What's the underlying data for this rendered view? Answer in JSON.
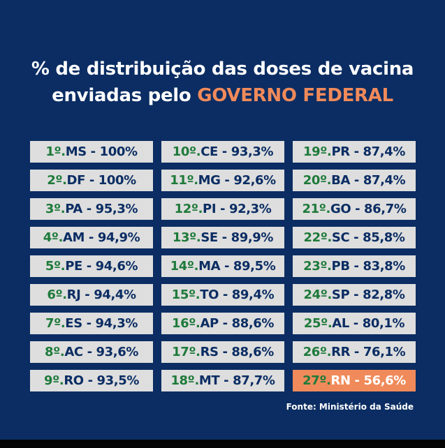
{
  "title": {
    "line1": "% de distribuição das doses de vacina",
    "line2_prefix": "enviadas pelo ",
    "line2_highlight": "GOVERNO FEDERAL"
  },
  "source": "Fonte: Ministério da Saúde",
  "colors": {
    "background": "#0b2d63",
    "cell": "#dedede",
    "rank": "#1e7a3a",
    "highlight": "#f08a5a"
  },
  "columns": [
    [
      {
        "rank": "1º.",
        "rest": "MS - 100%"
      },
      {
        "rank": "2º.",
        "rest": "DF - 100%"
      },
      {
        "rank": "3º.",
        "rest": "PA - 95,3%"
      },
      {
        "rank": "4º.",
        "rest": "AM - 94,9%"
      },
      {
        "rank": "5º.",
        "rest": "PE - 94,6%"
      },
      {
        "rank": "6º.",
        "rest": "RJ - 94,4%"
      },
      {
        "rank": "7º.",
        "rest": "ES - 94,3%"
      },
      {
        "rank": "8º.",
        "rest": "AC - 93,6%"
      },
      {
        "rank": "9º.",
        "rest": "RO - 93,5%"
      }
    ],
    [
      {
        "rank": "10º.",
        "rest": "CE - 93,3%"
      },
      {
        "rank": "11º.",
        "rest": "MG - 92,6%"
      },
      {
        "rank": "12º.",
        "rest": "PI - 92,3%"
      },
      {
        "rank": "13º.",
        "rest": "SE - 89,9%"
      },
      {
        "rank": "14º.",
        "rest": "MA - 89,5%"
      },
      {
        "rank": "15º.",
        "rest": "TO - 89,4%"
      },
      {
        "rank": "16º.",
        "rest": "AP - 88,6%"
      },
      {
        "rank": "17º.",
        "rest": "RS - 88,6%"
      },
      {
        "rank": "18º.",
        "rest": "MT - 87,7%"
      }
    ],
    [
      {
        "rank": "19º.",
        "rest": "PR - 87,4%"
      },
      {
        "rank": "20º.",
        "rest": "BA - 87,4%"
      },
      {
        "rank": "21º.",
        "rest": "GO - 86,7%"
      },
      {
        "rank": "22º.",
        "rest": "SC - 85,8%"
      },
      {
        "rank": "23º.",
        "rest": "PB - 83,8%"
      },
      {
        "rank": "24º.",
        "rest": "SP - 82,8%"
      },
      {
        "rank": "25º.",
        "rest": "AL - 80,1%"
      },
      {
        "rank": "26º.",
        "rest": "RR - 76,1%"
      },
      {
        "rank": "27º.",
        "rest": "RN - 56,6%",
        "highlight": true
      }
    ]
  ]
}
